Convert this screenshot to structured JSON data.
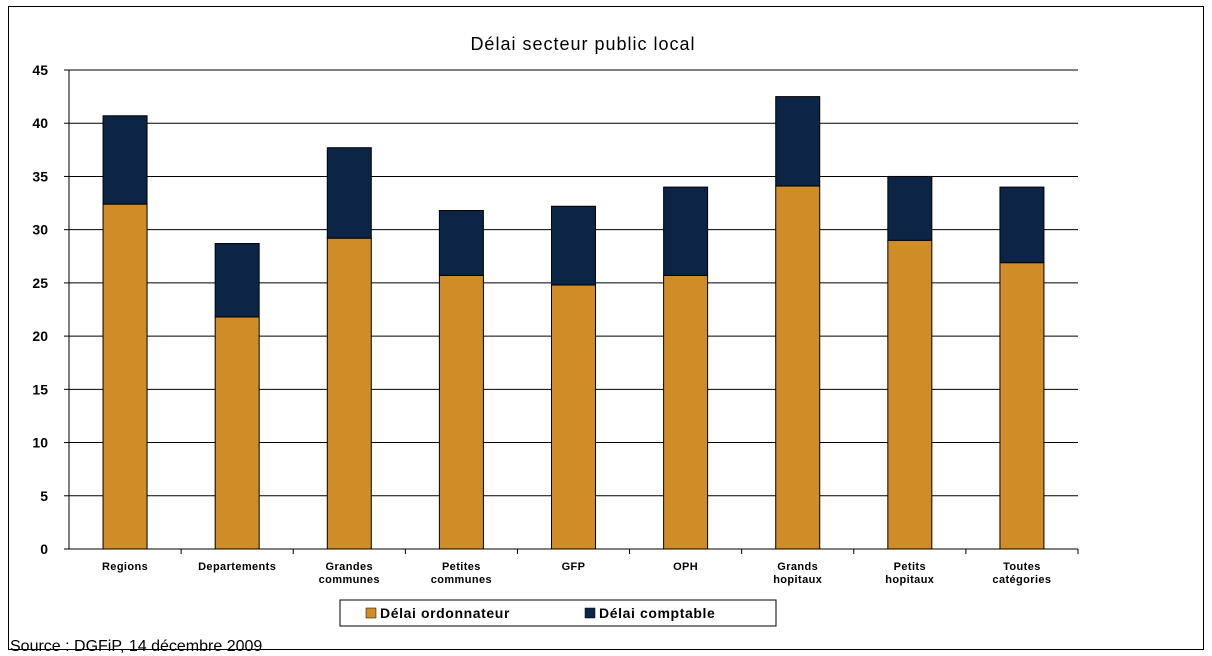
{
  "chart_data": {
    "type": "bar",
    "stacked": true,
    "title": "Délai secteur public local",
    "categories": [
      [
        "Regions"
      ],
      [
        "Departements"
      ],
      [
        "Grandes",
        "communes"
      ],
      [
        "Petites",
        "communes"
      ],
      [
        "GFP"
      ],
      [
        "OPH"
      ],
      [
        "Grands",
        "hopitaux"
      ],
      [
        "Petits",
        "hopitaux"
      ],
      [
        "Toutes",
        "catégories"
      ]
    ],
    "series": [
      {
        "name": "Délai ordonnateur",
        "color": "#D08C26",
        "values": [
          32.4,
          21.8,
          29.2,
          25.7,
          24.8,
          25.7,
          34.1,
          29.0,
          26.9
        ]
      },
      {
        "name": "Délai comptable",
        "color": "#0C2546",
        "values": [
          8.3,
          6.9,
          8.5,
          6.1,
          7.4,
          8.3,
          8.4,
          6.0,
          7.1
        ]
      }
    ],
    "xlabel": "",
    "ylabel": "",
    "ylim": [
      0,
      45
    ],
    "yticks": [
      0,
      5,
      10,
      15,
      20,
      25,
      30,
      35,
      40,
      45
    ],
    "grid": true,
    "legend_position": "bottom"
  },
  "source": "Source : DGFiP, 14 décembre 2009"
}
